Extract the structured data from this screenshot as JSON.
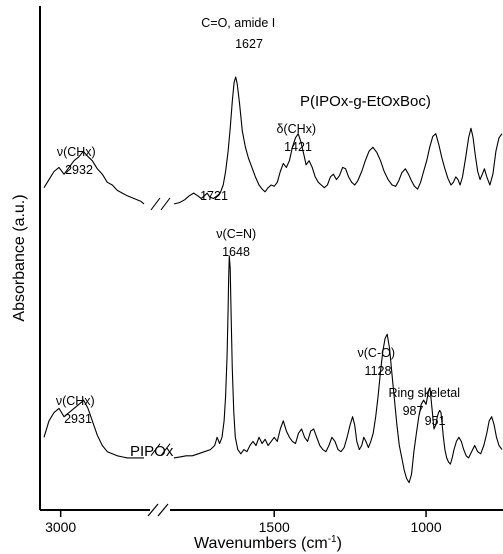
{
  "chart_data": {
    "type": "line",
    "xlabel": "Wavenumbers (cm",
    "xlabel_sup": "-1",
    "xlabel_tail": ")",
    "ylabel": "Absorbance (a.u.)",
    "x_reversed": true,
    "x_axis_break": true,
    "segments": [
      {
        "from": 3050,
        "to": 2750
      },
      {
        "from": 1830,
        "to": 750
      }
    ],
    "xticks": [
      {
        "value": 3000,
        "label": "3000"
      },
      {
        "value": 1500,
        "label": "1500"
      },
      {
        "value": 1000,
        "label": "1000"
      }
    ],
    "series": [
      {
        "name": "P(IPOx-g-EtOxBoc)",
        "points": [
          [
            3050,
            0.18
          ],
          [
            3035,
            0.24
          ],
          [
            3020,
            0.3
          ],
          [
            3005,
            0.33
          ],
          [
            2990,
            0.28
          ],
          [
            2975,
            0.33
          ],
          [
            2960,
            0.38
          ],
          [
            2945,
            0.41
          ],
          [
            2932,
            0.45
          ],
          [
            2918,
            0.41
          ],
          [
            2905,
            0.38
          ],
          [
            2890,
            0.32
          ],
          [
            2875,
            0.28
          ],
          [
            2860,
            0.22
          ],
          [
            2845,
            0.2
          ],
          [
            2830,
            0.16
          ],
          [
            2815,
            0.14
          ],
          [
            2800,
            0.12
          ],
          [
            2780,
            0.1
          ],
          [
            2760,
            0.08
          ],
          [
            2750,
            0.06
          ],
          [
            1830,
            0.06
          ],
          [
            1812,
            0.07
          ],
          [
            1795,
            0.09
          ],
          [
            1780,
            0.12
          ],
          [
            1765,
            0.14
          ],
          [
            1752,
            0.12
          ],
          [
            1740,
            0.1
          ],
          [
            1730,
            0.12
          ],
          [
            1721,
            0.14
          ],
          [
            1712,
            0.11
          ],
          [
            1700,
            0.1
          ],
          [
            1688,
            0.12
          ],
          [
            1678,
            0.14
          ],
          [
            1668,
            0.2
          ],
          [
            1660,
            0.3
          ],
          [
            1652,
            0.45
          ],
          [
            1645,
            0.62
          ],
          [
            1638,
            0.82
          ],
          [
            1632,
            0.96
          ],
          [
            1627,
            1.0
          ],
          [
            1622,
            0.95
          ],
          [
            1614,
            0.8
          ],
          [
            1605,
            0.6
          ],
          [
            1595,
            0.48
          ],
          [
            1585,
            0.4
          ],
          [
            1575,
            0.34
          ],
          [
            1562,
            0.26
          ],
          [
            1550,
            0.2
          ],
          [
            1540,
            0.17
          ],
          [
            1530,
            0.15
          ],
          [
            1520,
            0.18
          ],
          [
            1510,
            0.2
          ],
          [
            1500,
            0.19
          ],
          [
            1490,
            0.22
          ],
          [
            1480,
            0.3
          ],
          [
            1470,
            0.36
          ],
          [
            1460,
            0.33
          ],
          [
            1450,
            0.38
          ],
          [
            1440,
            0.48
          ],
          [
            1430,
            0.55
          ],
          [
            1421,
            0.58
          ],
          [
            1412,
            0.52
          ],
          [
            1402,
            0.42
          ],
          [
            1395,
            0.35
          ],
          [
            1385,
            0.38
          ],
          [
            1375,
            0.33
          ],
          [
            1365,
            0.26
          ],
          [
            1355,
            0.22
          ],
          [
            1345,
            0.2
          ],
          [
            1335,
            0.18
          ],
          [
            1325,
            0.2
          ],
          [
            1315,
            0.26
          ],
          [
            1305,
            0.28
          ],
          [
            1295,
            0.24
          ],
          [
            1285,
            0.27
          ],
          [
            1275,
            0.33
          ],
          [
            1265,
            0.32
          ],
          [
            1255,
            0.26
          ],
          [
            1245,
            0.22
          ],
          [
            1235,
            0.2
          ],
          [
            1225,
            0.23
          ],
          [
            1212,
            0.3
          ],
          [
            1200,
            0.38
          ],
          [
            1188,
            0.45
          ],
          [
            1175,
            0.48
          ],
          [
            1162,
            0.44
          ],
          [
            1150,
            0.38
          ],
          [
            1138,
            0.3
          ],
          [
            1125,
            0.24
          ],
          [
            1112,
            0.2
          ],
          [
            1100,
            0.19
          ],
          [
            1090,
            0.23
          ],
          [
            1080,
            0.29
          ],
          [
            1068,
            0.32
          ],
          [
            1058,
            0.28
          ],
          [
            1048,
            0.23
          ],
          [
            1038,
            0.19
          ],
          [
            1028,
            0.17
          ],
          [
            1018,
            0.22
          ],
          [
            1008,
            0.3
          ],
          [
            998,
            0.38
          ],
          [
            988,
            0.48
          ],
          [
            978,
            0.56
          ],
          [
            968,
            0.58
          ],
          [
            958,
            0.5
          ],
          [
            948,
            0.4
          ],
          [
            938,
            0.32
          ],
          [
            928,
            0.25
          ],
          [
            918,
            0.2
          ],
          [
            910,
            0.22
          ],
          [
            902,
            0.26
          ],
          [
            895,
            0.24
          ],
          [
            888,
            0.2
          ],
          [
            880,
            0.26
          ],
          [
            870,
            0.4
          ],
          [
            860,
            0.55
          ],
          [
            852,
            0.62
          ],
          [
            845,
            0.55
          ],
          [
            838,
            0.42
          ],
          [
            830,
            0.3
          ],
          [
            822,
            0.24
          ],
          [
            815,
            0.28
          ],
          [
            808,
            0.32
          ],
          [
            800,
            0.26
          ],
          [
            790,
            0.2
          ],
          [
            780,
            0.28
          ],
          [
            770,
            0.45
          ],
          [
            760,
            0.55
          ],
          [
            750,
            0.58
          ]
        ]
      },
      {
        "name": "PIPOx",
        "points": [
          [
            3050,
            0.12
          ],
          [
            3035,
            0.2
          ],
          [
            3020,
            0.24
          ],
          [
            3005,
            0.26
          ],
          [
            2990,
            0.22
          ],
          [
            2975,
            0.24
          ],
          [
            2960,
            0.26
          ],
          [
            2945,
            0.28
          ],
          [
            2931,
            0.3
          ],
          [
            2918,
            0.26
          ],
          [
            2905,
            0.2
          ],
          [
            2890,
            0.13
          ],
          [
            2875,
            0.08
          ],
          [
            2860,
            0.05
          ],
          [
            2845,
            0.04
          ],
          [
            2830,
            0.03
          ],
          [
            2815,
            0.025
          ],
          [
            2800,
            0.02
          ],
          [
            2780,
            0.02
          ],
          [
            2760,
            0.02
          ],
          [
            2750,
            0.02
          ],
          [
            1830,
            0.02
          ],
          [
            1810,
            0.025
          ],
          [
            1790,
            0.03
          ],
          [
            1770,
            0.03
          ],
          [
            1750,
            0.04
          ],
          [
            1730,
            0.05
          ],
          [
            1710,
            0.06
          ],
          [
            1696,
            0.08
          ],
          [
            1688,
            0.12
          ],
          [
            1680,
            0.09
          ],
          [
            1672,
            0.12
          ],
          [
            1665,
            0.2
          ],
          [
            1660,
            0.32
          ],
          [
            1655,
            0.52
          ],
          [
            1652,
            0.74
          ],
          [
            1650,
            0.9
          ],
          [
            1648,
            1.0
          ],
          [
            1645,
            0.94
          ],
          [
            1642,
            0.72
          ],
          [
            1638,
            0.45
          ],
          [
            1633,
            0.24
          ],
          [
            1628,
            0.12
          ],
          [
            1620,
            0.06
          ],
          [
            1610,
            0.04
          ],
          [
            1600,
            0.06
          ],
          [
            1590,
            0.05
          ],
          [
            1580,
            0.08
          ],
          [
            1570,
            0.1
          ],
          [
            1560,
            0.08
          ],
          [
            1550,
            0.12
          ],
          [
            1540,
            0.09
          ],
          [
            1530,
            0.11
          ],
          [
            1520,
            0.08
          ],
          [
            1510,
            0.1
          ],
          [
            1500,
            0.12
          ],
          [
            1490,
            0.1
          ],
          [
            1480,
            0.16
          ],
          [
            1470,
            0.2
          ],
          [
            1460,
            0.15
          ],
          [
            1450,
            0.12
          ],
          [
            1440,
            0.1
          ],
          [
            1430,
            0.09
          ],
          [
            1420,
            0.14
          ],
          [
            1410,
            0.16
          ],
          [
            1400,
            0.12
          ],
          [
            1390,
            0.1
          ],
          [
            1380,
            0.15
          ],
          [
            1370,
            0.16
          ],
          [
            1360,
            0.12
          ],
          [
            1350,
            0.08
          ],
          [
            1340,
            0.06
          ],
          [
            1330,
            0.05
          ],
          [
            1320,
            0.08
          ],
          [
            1310,
            0.12
          ],
          [
            1300,
            0.1
          ],
          [
            1290,
            0.06
          ],
          [
            1280,
            0.05
          ],
          [
            1270,
            0.07
          ],
          [
            1260,
            0.12
          ],
          [
            1250,
            0.18
          ],
          [
            1242,
            0.22
          ],
          [
            1235,
            0.18
          ],
          [
            1228,
            0.1
          ],
          [
            1220,
            0.06
          ],
          [
            1212,
            0.08
          ],
          [
            1205,
            0.12
          ],
          [
            1198,
            0.1
          ],
          [
            1190,
            0.07
          ],
          [
            1182,
            0.1
          ],
          [
            1174,
            0.14
          ],
          [
            1166,
            0.22
          ],
          [
            1158,
            0.32
          ],
          [
            1150,
            0.44
          ],
          [
            1142,
            0.54
          ],
          [
            1135,
            0.6
          ],
          [
            1128,
            0.62
          ],
          [
            1120,
            0.55
          ],
          [
            1112,
            0.42
          ],
          [
            1104,
            0.3
          ],
          [
            1096,
            0.18
          ],
          [
            1088,
            0.08
          ],
          [
            1080,
            0.02
          ],
          [
            1072,
            -0.04
          ],
          [
            1064,
            -0.08
          ],
          [
            1056,
            -0.1
          ],
          [
            1048,
            -0.06
          ],
          [
            1040,
            0.05
          ],
          [
            1032,
            0.14
          ],
          [
            1024,
            0.22
          ],
          [
            1016,
            0.28
          ],
          [
            1008,
            0.3
          ],
          [
            1000,
            0.28
          ],
          [
            995,
            0.32
          ],
          [
            991,
            0.35
          ],
          [
            987,
            0.36
          ],
          [
            983,
            0.3
          ],
          [
            978,
            0.22
          ],
          [
            974,
            0.16
          ],
          [
            968,
            0.18
          ],
          [
            963,
            0.22
          ],
          [
            959,
            0.24
          ],
          [
            955,
            0.25
          ],
          [
            951,
            0.24
          ],
          [
            947,
            0.18
          ],
          [
            943,
            0.12
          ],
          [
            938,
            0.06
          ],
          [
            932,
            0.02
          ],
          [
            926,
            0.0
          ],
          [
            920,
            -0.01
          ],
          [
            914,
            0.02
          ],
          [
            908,
            0.06
          ],
          [
            900,
            0.1
          ],
          [
            892,
            0.12
          ],
          [
            884,
            0.1
          ],
          [
            876,
            0.06
          ],
          [
            868,
            0.03
          ],
          [
            860,
            0.02
          ],
          [
            850,
            0.05
          ],
          [
            840,
            0.08
          ],
          [
            830,
            0.05
          ],
          [
            820,
            0.04
          ],
          [
            810,
            0.08
          ],
          [
            800,
            0.14
          ],
          [
            792,
            0.2
          ],
          [
            784,
            0.22
          ],
          [
            776,
            0.18
          ],
          [
            768,
            0.12
          ],
          [
            760,
            0.08
          ],
          [
            750,
            0.06
          ]
        ]
      }
    ],
    "annotations": [
      {
        "id": "a1",
        "series": 0,
        "lines": [
          "C=O, amide I",
          "1627"
        ]
      },
      {
        "id": "a2",
        "series": 0,
        "lines": [
          "δ(CHx)",
          "1421"
        ]
      },
      {
        "id": "a3",
        "series": 0,
        "lines": [
          "ν(CHx)",
          "2932"
        ]
      },
      {
        "id": "a4",
        "series": 0,
        "lines": [
          "1721"
        ]
      },
      {
        "id": "a5",
        "series": 1,
        "lines": [
          "ν(C=N)",
          "1648"
        ]
      },
      {
        "id": "a6",
        "series": 1,
        "lines": [
          "ν(C-O)",
          "1128"
        ]
      },
      {
        "id": "a7",
        "series": 1,
        "lines": [
          "Ring skeletal",
          "987"
        ]
      },
      {
        "id": "a8",
        "series": 1,
        "lines": [
          "951"
        ]
      },
      {
        "id": "a9",
        "series": 1,
        "lines": [
          "ν(CHx)",
          "2931"
        ]
      }
    ]
  }
}
